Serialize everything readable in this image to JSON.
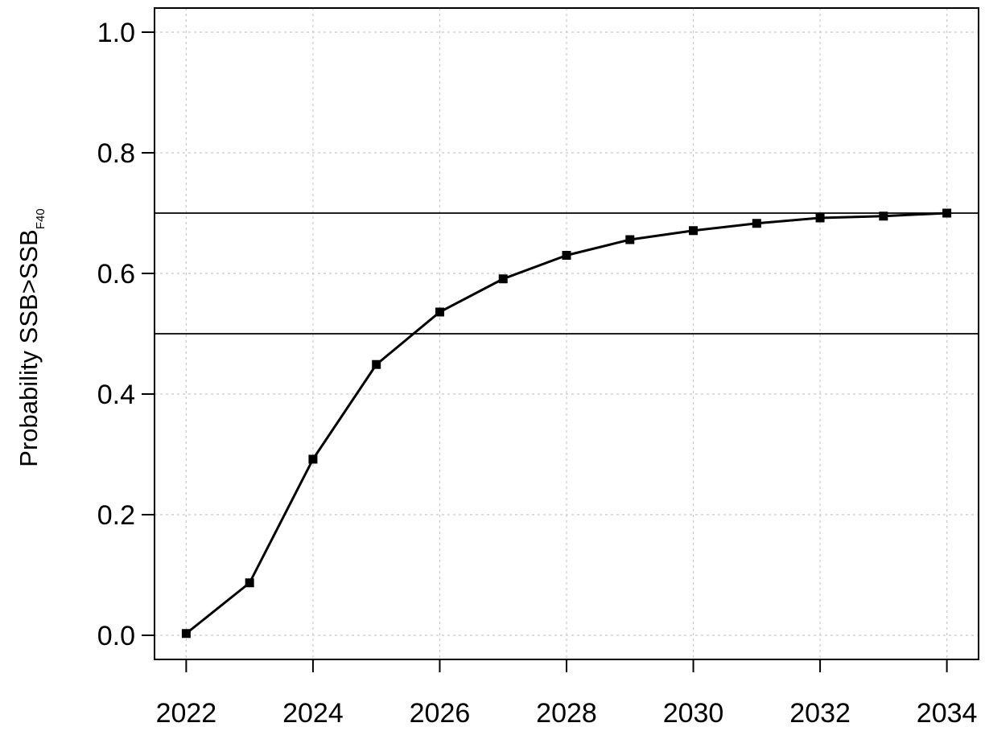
{
  "chart_data": {
    "type": "line",
    "ylabel": {
      "main": "Probability SSB>SSB",
      "subscript": "F40"
    },
    "xlabel": "",
    "title": "",
    "x": [
      2022,
      2023,
      2024,
      2025,
      2026,
      2027,
      2028,
      2029,
      2030,
      2031,
      2032,
      2033,
      2034
    ],
    "series": [
      {
        "values": [
          0.003,
          0.087,
          0.292,
          0.449,
          0.536,
          0.591,
          0.63,
          0.656,
          0.671,
          0.683,
          0.692,
          0.695,
          0.7
        ]
      }
    ],
    "reference_lines_y": [
      0.5,
      0.7
    ],
    "xlim": [
      2021.5,
      2034.5
    ],
    "ylim": [
      -0.04,
      1.04
    ],
    "x_ticks": [
      "2022",
      "2024",
      "2026",
      "2028",
      "2030",
      "2032",
      "2034"
    ],
    "y_ticks": [
      "0.0",
      "0.2",
      "0.4",
      "0.6",
      "0.8",
      "1.0"
    ],
    "grid": true,
    "marker": "square",
    "colors": {
      "line": "#000000",
      "grid": "#c8c8c8",
      "reference": "#000000"
    }
  }
}
